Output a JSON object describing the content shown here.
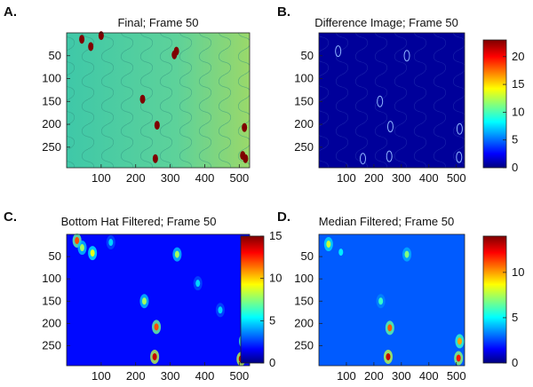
{
  "figure": {
    "panels": [
      {
        "letter": "A.",
        "title": "Final; Frame 50"
      },
      {
        "letter": "B.",
        "title": "Difference Image; Frame 50"
      },
      {
        "letter": "C.",
        "title": "Bottom Hat Filtered; Frame 50"
      },
      {
        "letter": "D.",
        "title": "Median Filtered; Frame 50"
      }
    ]
  },
  "chart_data": [
    {
      "type": "heatmap",
      "panel": "A.",
      "title": "Final; Frame 50",
      "xlabel": "",
      "ylabel": "",
      "xlim": [
        0,
        530
      ],
      "ylim": [
        295,
        0
      ],
      "xticks": [
        100,
        200,
        300,
        400,
        500
      ],
      "yticks": [
        50,
        100,
        150,
        200,
        250
      ],
      "colorbar": null,
      "colormap": "jet",
      "background_value": 0.45,
      "hotspots": [
        {
          "x": 44,
          "y": 14,
          "value": 1.0
        },
        {
          "x": 100,
          "y": 6,
          "value": 1.0
        },
        {
          "x": 70,
          "y": 30,
          "value": 0.95
        },
        {
          "x": 318,
          "y": 40,
          "value": 1.0
        },
        {
          "x": 312,
          "y": 48,
          "value": 1.0
        },
        {
          "x": 220,
          "y": 145,
          "value": 1.0
        },
        {
          "x": 262,
          "y": 202,
          "value": 1.0
        },
        {
          "x": 257,
          "y": 275,
          "value": 1.0
        },
        {
          "x": 515,
          "y": 207,
          "value": 1.0
        },
        {
          "x": 510,
          "y": 268,
          "value": 1.0
        },
        {
          "x": 518,
          "y": 275,
          "value": 1.0
        }
      ]
    },
    {
      "type": "heatmap",
      "panel": "B.",
      "title": "Difference Image; Frame 50",
      "xlabel": "",
      "ylabel": "",
      "xlim": [
        0,
        530
      ],
      "ylim": [
        295,
        0
      ],
      "xticks": [
        100,
        200,
        300,
        400,
        500
      ],
      "yticks": [
        50,
        100,
        150,
        200,
        250
      ],
      "colorbar": {
        "range": [
          0,
          23
        ],
        "ticks": [
          0,
          5,
          10,
          15,
          20
        ]
      },
      "colormap": "jet",
      "background_value": 0.6,
      "hotspots": [
        {
          "x": 320,
          "y": 50,
          "value": 4
        },
        {
          "x": 70,
          "y": 40,
          "value": 3
        },
        {
          "x": 222,
          "y": 150,
          "value": 4
        },
        {
          "x": 260,
          "y": 205,
          "value": 4
        },
        {
          "x": 256,
          "y": 270,
          "value": 4
        },
        {
          "x": 512,
          "y": 210,
          "value": 4
        },
        {
          "x": 510,
          "y": 272,
          "value": 5
        },
        {
          "x": 160,
          "y": 275,
          "value": 3
        }
      ]
    },
    {
      "type": "heatmap",
      "panel": "C.",
      "title": "Bottom Hat Filtered; Frame 50",
      "xlabel": "",
      "ylabel": "",
      "xlim": [
        0,
        530
      ],
      "ylim": [
        295,
        0
      ],
      "xticks": [
        100,
        200,
        300,
        400,
        500
      ],
      "yticks": [
        50,
        100,
        150,
        200,
        250
      ],
      "colorbar": {
        "range": [
          0,
          15
        ],
        "ticks": [
          0,
          5,
          10,
          15
        ]
      },
      "colormap": "jet",
      "background_value": 2,
      "hotspots": [
        {
          "x": 30,
          "y": 14,
          "value": 12
        },
        {
          "x": 45,
          "y": 30,
          "value": 8
        },
        {
          "x": 75,
          "y": 42,
          "value": 9
        },
        {
          "x": 128,
          "y": 18,
          "value": 5
        },
        {
          "x": 320,
          "y": 45,
          "value": 8
        },
        {
          "x": 225,
          "y": 150,
          "value": 8
        },
        {
          "x": 260,
          "y": 208,
          "value": 12
        },
        {
          "x": 255,
          "y": 275,
          "value": 14
        },
        {
          "x": 512,
          "y": 240,
          "value": 11
        },
        {
          "x": 505,
          "y": 280,
          "value": 14
        },
        {
          "x": 445,
          "y": 170,
          "value": 5
        },
        {
          "x": 380,
          "y": 110,
          "value": 5
        }
      ]
    },
    {
      "type": "heatmap",
      "panel": "D.",
      "title": "Median Filtered; Frame 50",
      "xlabel": "",
      "ylabel": "",
      "xlim": [
        0,
        530
      ],
      "ylim": [
        295,
        0
      ],
      "xticks": [
        100,
        200,
        300,
        400,
        500
      ],
      "yticks": [
        50,
        100,
        150,
        200,
        250
      ],
      "colorbar": {
        "range": [
          0,
          14
        ],
        "ticks": [
          0,
          5,
          10
        ]
      },
      "colormap": "jet",
      "background_value": 3,
      "hotspots": [
        {
          "x": 35,
          "y": 22,
          "value": 8
        },
        {
          "x": 80,
          "y": 40,
          "value": 5
        },
        {
          "x": 320,
          "y": 45,
          "value": 7
        },
        {
          "x": 225,
          "y": 150,
          "value": 6
        },
        {
          "x": 258,
          "y": 210,
          "value": 11
        },
        {
          "x": 252,
          "y": 275,
          "value": 13
        },
        {
          "x": 512,
          "y": 240,
          "value": 10
        },
        {
          "x": 508,
          "y": 278,
          "value": 12
        }
      ]
    }
  ]
}
